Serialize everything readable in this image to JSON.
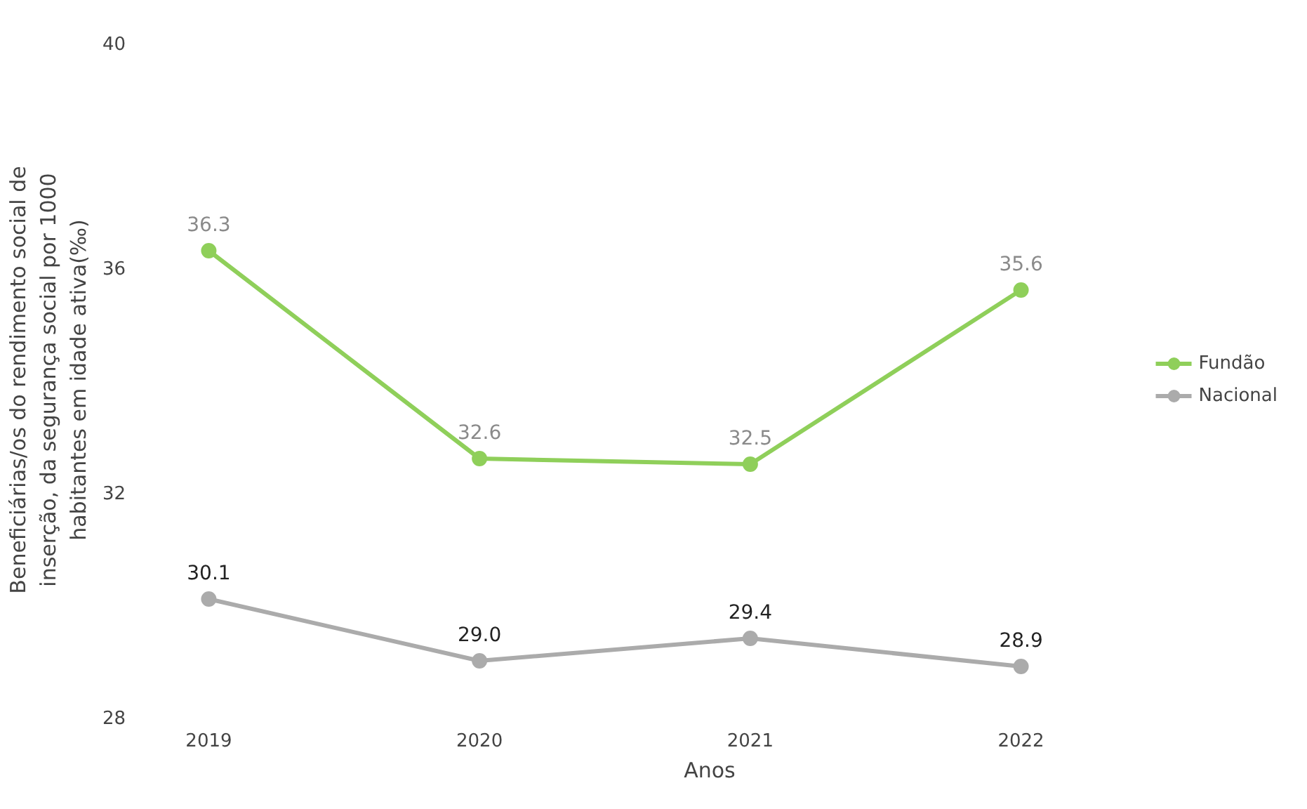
{
  "chart_data": {
    "type": "line",
    "xlabel": "Anos",
    "ylabel": "Beneficiárias/os do rendimento social de\ninserção, da segurança social por 1000\nhabitantes em idade ativa(‰)",
    "categories": [
      "2019",
      "2020",
      "2021",
      "2022"
    ],
    "series": [
      {
        "name": "Fundão",
        "color": "#8fcf5a",
        "values": [
          36.3,
          32.6,
          32.5,
          35.6
        ],
        "value_labels": [
          "36.3",
          "32.6",
          "32.5",
          "35.6"
        ]
      },
      {
        "name": "Nacional",
        "color": "#ababab",
        "values": [
          30.1,
          29.0,
          29.4,
          28.9
        ],
        "value_labels": [
          "30.1",
          "29.0",
          "29.4",
          "28.9"
        ]
      }
    ],
    "ylim": [
      28,
      40
    ],
    "yticks": [
      28,
      32,
      36,
      40
    ],
    "grid": false,
    "legend": "right",
    "marker": "circle"
  }
}
